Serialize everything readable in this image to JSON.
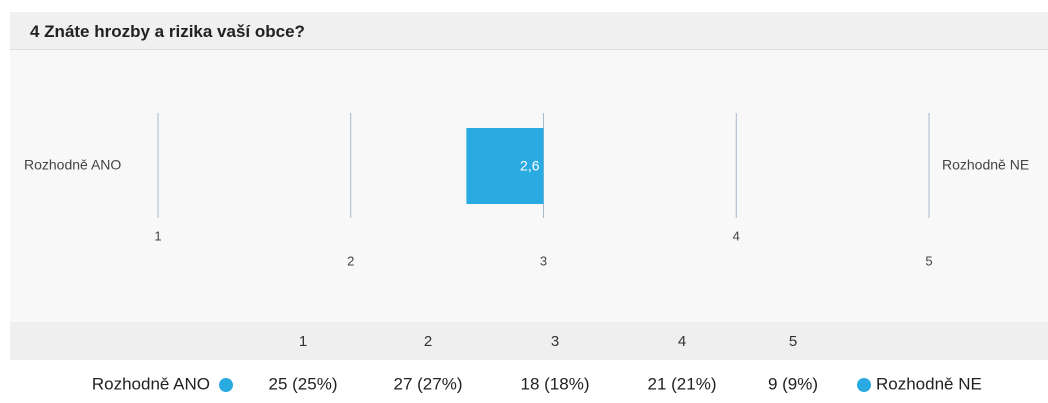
{
  "header": {
    "title": "4 Znáte hrozby a rizika vaší obce?"
  },
  "chart_data": {
    "type": "mean-bar",
    "value": 2.6,
    "value_label": "2,6",
    "color": "#29abe2",
    "left_label": "Rozhodně ANO",
    "right_label": "Rozhodně NE",
    "xlim": [
      1,
      5
    ],
    "xticks": [
      1,
      2,
      3,
      4,
      5
    ]
  },
  "table": {
    "columns": [
      "1",
      "2",
      "3",
      "4",
      "5"
    ],
    "left_label": "Rozhodně ANO",
    "right_label": "Rozhodně NE",
    "cells": [
      "25 (25%)",
      "27 (27%)",
      "18 (18%)",
      "21 (21%)",
      "9 (9%)"
    ]
  }
}
